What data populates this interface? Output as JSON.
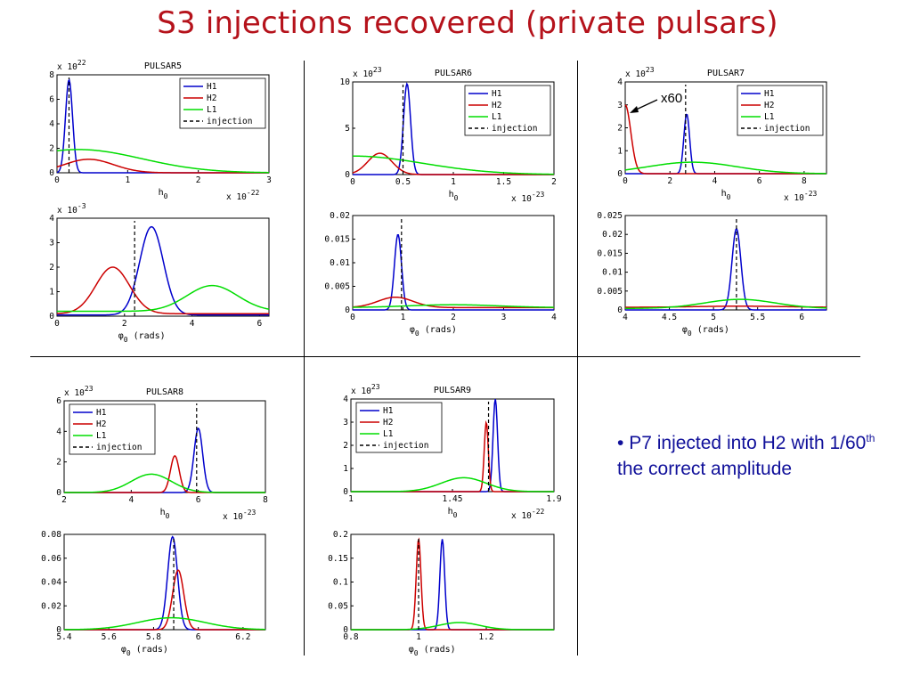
{
  "slide": {
    "title": "S3 injections recovered (private pulsars)",
    "note_bullet": "•",
    "note_part1": "P7 injected into H2 with 1/60",
    "note_sup": "th",
    "note_part2": " the correct amplitude",
    "annotation": "x60"
  },
  "colors": {
    "title": "#b5121b",
    "H1": "#0000cc",
    "H2": "#cc0000",
    "L1": "#00dd00",
    "injection": "#000000",
    "note": "#10109a"
  },
  "legend_labels": [
    "H1",
    "H2",
    "L1",
    "injection"
  ],
  "chart_data": [
    {
      "id": "p5h",
      "type": "line",
      "title": "PULSAR5",
      "xlabel": "h",
      "xlabel_sub": "0",
      "x_multiplier": "x 10",
      "x_multiplier_exp": "-22",
      "y_multiplier": "x 10",
      "y_multiplier_exp": "22",
      "xlim": [
        0,
        3
      ],
      "ylim": [
        0,
        8
      ],
      "xticks": [
        0,
        1,
        2,
        3
      ],
      "xticklabels": [
        "0",
        "1",
        "2",
        "3"
      ],
      "yticks": [
        0,
        2,
        4,
        6,
        8
      ],
      "yticklabels": [
        "0",
        "2",
        "4",
        "6",
        "8"
      ],
      "legend": "top-right",
      "injection_x": 0.17,
      "series": [
        {
          "name": "H1",
          "gauss": [
            {
              "mu": 0.17,
              "sigma": 0.05,
              "amp": 7.6
            }
          ]
        },
        {
          "name": "H2",
          "gauss": [
            {
              "mu": 0.45,
              "sigma": 0.35,
              "amp": 1.1
            }
          ]
        },
        {
          "name": "L1",
          "gauss": [
            {
              "mu": 0.3,
              "sigma": 0.9,
              "amp": 1.9
            }
          ]
        }
      ]
    },
    {
      "id": "p5p",
      "type": "line",
      "xlabel": "φ",
      "xlabel_sub": "0",
      "xlabel_rest": " (rads)",
      "y_multiplier": "x 10",
      "y_multiplier_exp": "-3",
      "xlim": [
        0,
        6.28
      ],
      "ylim": [
        0,
        4
      ],
      "xticks": [
        0,
        2,
        4,
        6
      ],
      "xticklabels": [
        "0",
        "2",
        "4",
        "6"
      ],
      "yticks": [
        0,
        1,
        2,
        3,
        4
      ],
      "yticklabels": [
        "0",
        "1",
        "2",
        "3",
        "4"
      ],
      "injection_x": 2.3,
      "series": [
        {
          "name": "H1",
          "base": 0.05,
          "gauss": [
            {
              "mu": 2.8,
              "sigma": 0.35,
              "amp": 3.6
            }
          ]
        },
        {
          "name": "H2",
          "base": 0.1,
          "gauss": [
            {
              "mu": 1.65,
              "sigma": 0.5,
              "amp": 1.9
            }
          ]
        },
        {
          "name": "L1",
          "base": 0.2,
          "gauss": [
            {
              "mu": 4.6,
              "sigma": 0.75,
              "amp": 1.05
            }
          ]
        }
      ]
    },
    {
      "id": "p6h",
      "type": "line",
      "title": "PULSAR6",
      "xlabel": "h",
      "xlabel_sub": "0",
      "x_multiplier": "x 10",
      "x_multiplier_exp": "-23",
      "y_multiplier": "x 10",
      "y_multiplier_exp": "23",
      "xlim": [
        0,
        2
      ],
      "ylim": [
        0,
        10
      ],
      "xticks": [
        0,
        0.5,
        1,
        1.5,
        2
      ],
      "xticklabels": [
        "0",
        "0.5",
        "1",
        "1.5",
        "2"
      ],
      "yticks": [
        0,
        5,
        10
      ],
      "yticklabels": [
        "0",
        "5",
        "10"
      ],
      "legend": "top-right",
      "injection_x": 0.5,
      "series": [
        {
          "name": "H1",
          "gauss": [
            {
              "mu": 0.54,
              "sigma": 0.035,
              "amp": 9.8
            }
          ]
        },
        {
          "name": "H2",
          "gauss": [
            {
              "mu": 0.27,
              "sigma": 0.12,
              "amp": 2.3
            }
          ]
        },
        {
          "name": "L1",
          "gauss": [
            {
              "mu": 0.0,
              "sigma": 0.7,
              "amp": 2.0
            }
          ]
        }
      ]
    },
    {
      "id": "p6p",
      "type": "line",
      "xlabel": "φ",
      "xlabel_sub": "0",
      "xlabel_rest": " (rads)",
      "xlim": [
        0,
        4
      ],
      "ylim": [
        0,
        0.02
      ],
      "xticks": [
        0,
        1,
        2,
        3,
        4
      ],
      "xticklabels": [
        "0",
        "1",
        "2",
        "3",
        "4"
      ],
      "yticks": [
        0,
        0.005,
        0.01,
        0.015,
        0.02
      ],
      "yticklabels": [
        "0",
        "0.005",
        "0.01",
        "0.015",
        "0.02"
      ],
      "injection_x": 0.97,
      "series": [
        {
          "name": "H1",
          "gauss": [
            {
              "mu": 0.9,
              "sigma": 0.07,
              "amp": 0.016
            }
          ]
        },
        {
          "name": "H2",
          "base": 0.0005,
          "gauss": [
            {
              "mu": 0.85,
              "sigma": 0.35,
              "amp": 0.0022
            }
          ]
        },
        {
          "name": "L1",
          "base": 0.0005,
          "gauss": [
            {
              "mu": 2.0,
              "sigma": 0.9,
              "amp": 0.0006
            }
          ]
        }
      ]
    },
    {
      "id": "p7h",
      "type": "line",
      "title": "PULSAR7",
      "xlabel": "h",
      "xlabel_sub": "0",
      "x_multiplier": "x 10",
      "x_multiplier_exp": "-23",
      "y_multiplier": "x 10",
      "y_multiplier_exp": "23",
      "xlim": [
        0,
        9
      ],
      "ylim": [
        0,
        4
      ],
      "xticks": [
        0,
        2,
        4,
        6,
        8
      ],
      "xticklabels": [
        "0",
        "2",
        "4",
        "6",
        "8"
      ],
      "yticks": [
        0,
        1,
        2,
        3,
        4
      ],
      "yticklabels": [
        "0",
        "1",
        "2",
        "3",
        "4"
      ],
      "legend": "top-right",
      "injection_x": 2.7,
      "series": [
        {
          "name": "H1",
          "gauss": [
            {
              "mu": 2.75,
              "sigma": 0.13,
              "amp": 2.6
            }
          ]
        },
        {
          "name": "H2",
          "gauss": [
            {
              "mu": 0.0,
              "sigma": 0.25,
              "amp": 3.0
            }
          ]
        },
        {
          "name": "L1",
          "gauss": [
            {
              "mu": 3.0,
              "sigma": 2.0,
              "amp": 0.5
            }
          ]
        }
      ]
    },
    {
      "id": "p7p",
      "type": "line",
      "xlabel": "φ",
      "xlabel_sub": "0",
      "xlabel_rest": " (rads)",
      "xlim": [
        4,
        6.28
      ],
      "ylim": [
        0,
        0.025
      ],
      "xticks": [
        4,
        4.5,
        5,
        5.5,
        6
      ],
      "xticklabels": [
        "4",
        "4.5",
        "5",
        "5.5",
        "6"
      ],
      "yticks": [
        0,
        0.005,
        0.01,
        0.015,
        0.02,
        0.025
      ],
      "yticklabels": [
        "0",
        "0.005",
        "0.01",
        "0.015",
        "0.02",
        "0.025"
      ],
      "injection_x": 5.26,
      "series": [
        {
          "name": "H1",
          "gauss": [
            {
              "mu": 5.26,
              "sigma": 0.05,
              "amp": 0.0215
            }
          ]
        },
        {
          "name": "H2",
          "base": 0.0007,
          "gauss": [
            {
              "mu": 5.3,
              "sigma": 0.5,
              "amp": 0.0003
            }
          ]
        },
        {
          "name": "L1",
          "base": 0.0004,
          "gauss": [
            {
              "mu": 5.3,
              "sigma": 0.4,
              "amp": 0.0024
            }
          ]
        }
      ]
    },
    {
      "id": "p8h",
      "type": "line",
      "title": "PULSAR8",
      "xlabel": "h",
      "xlabel_sub": "0",
      "x_multiplier": "x 10",
      "x_multiplier_exp": "-23",
      "y_multiplier": "x 10",
      "y_multiplier_exp": "23",
      "xlim": [
        2,
        8
      ],
      "ylim": [
        0,
        6
      ],
      "xticks": [
        2,
        4,
        6,
        8
      ],
      "xticklabels": [
        "2",
        "4",
        "6",
        "8"
      ],
      "yticks": [
        0,
        2,
        4,
        6
      ],
      "yticklabels": [
        "0",
        "2",
        "4",
        "6"
      ],
      "legend": "top-left",
      "injection_x": 5.95,
      "series": [
        {
          "name": "H1",
          "gauss": [
            {
              "mu": 6.0,
              "sigma": 0.13,
              "amp": 4.2
            }
          ]
        },
        {
          "name": "H2",
          "gauss": [
            {
              "mu": 5.3,
              "sigma": 0.13,
              "amp": 2.4
            }
          ]
        },
        {
          "name": "L1",
          "gauss": [
            {
              "mu": 4.6,
              "sigma": 0.6,
              "amp": 1.2
            }
          ]
        }
      ]
    },
    {
      "id": "p8p",
      "type": "line",
      "xlabel": "φ",
      "xlabel_sub": "0",
      "xlabel_rest": " (rads)",
      "xlim": [
        5.4,
        6.3
      ],
      "ylim": [
        0,
        0.08
      ],
      "xticks": [
        5.4,
        5.6,
        5.8,
        6,
        6.2
      ],
      "xticklabels": [
        "5.4",
        "5.6",
        "5.8",
        "6",
        "6.2"
      ],
      "yticks": [
        0,
        0.02,
        0.04,
        0.06,
        0.08
      ],
      "yticklabels": [
        "0",
        "0.02",
        "0.04",
        "0.06",
        "0.08"
      ],
      "injection_x": 5.89,
      "series": [
        {
          "name": "H1",
          "gauss": [
            {
              "mu": 5.885,
              "sigma": 0.022,
              "amp": 0.078
            }
          ]
        },
        {
          "name": "H2",
          "gauss": [
            {
              "mu": 5.91,
              "sigma": 0.025,
              "amp": 0.05
            }
          ]
        },
        {
          "name": "L1",
          "gauss": [
            {
              "mu": 5.88,
              "sigma": 0.15,
              "amp": 0.01
            }
          ]
        }
      ]
    },
    {
      "id": "p9h",
      "type": "line",
      "title": "PULSAR9",
      "xlabel": "h",
      "xlabel_sub": "0",
      "x_multiplier": "x 10",
      "x_multiplier_exp": "-22",
      "y_multiplier": "x 10",
      "y_multiplier_exp": "23",
      "xlim": [
        1,
        1.9
      ],
      "ylim": [
        0,
        4
      ],
      "xticks": [
        1,
        1.45,
        1.9
      ],
      "xticklabels": [
        "1",
        "1.45",
        "1.9"
      ],
      "yticks": [
        0,
        1,
        2,
        3,
        4
      ],
      "yticklabels": [
        "0",
        "1",
        "2",
        "3",
        "4"
      ],
      "legend": "top-left",
      "injection_x": 1.61,
      "series": [
        {
          "name": "H1",
          "gauss": [
            {
              "mu": 1.64,
              "sigma": 0.01,
              "amp": 4.0
            }
          ]
        },
        {
          "name": "H2",
          "gauss": [
            {
              "mu": 1.6,
              "sigma": 0.009,
              "amp": 3.0
            }
          ]
        },
        {
          "name": "L1",
          "gauss": [
            {
              "mu": 1.5,
              "sigma": 0.1,
              "amp": 0.6
            }
          ]
        }
      ]
    },
    {
      "id": "p9p",
      "type": "line",
      "xlabel": "φ",
      "xlabel_sub": "0",
      "xlabel_rest": " (rads)",
      "xlim": [
        0.8,
        1.4
      ],
      "ylim": [
        0,
        0.2
      ],
      "xticks": [
        0.8,
        1,
        1.2
      ],
      "xticklabels": [
        "0.8",
        "1",
        "1.2"
      ],
      "yticks": [
        0,
        0.05,
        0.1,
        0.15,
        0.2
      ],
      "yticklabels": [
        "0",
        "0.05",
        "0.1",
        "0.15",
        "0.2"
      ],
      "injection_x": 1.0,
      "series": [
        {
          "name": "H1",
          "gauss": [
            {
              "mu": 1.07,
              "sigma": 0.007,
              "amp": 0.19
            }
          ]
        },
        {
          "name": "H2",
          "gauss": [
            {
              "mu": 1.0,
              "sigma": 0.007,
              "amp": 0.19
            }
          ]
        },
        {
          "name": "L1",
          "gauss": [
            {
              "mu": 1.12,
              "sigma": 0.06,
              "amp": 0.015
            }
          ]
        }
      ]
    }
  ]
}
